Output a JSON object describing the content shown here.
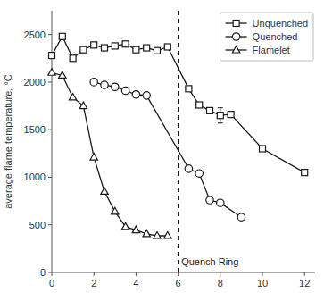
{
  "chart_data": {
    "type": "line",
    "ylabel": "average flame temperature, °C",
    "xlim": [
      0,
      12.5
    ],
    "ylim": [
      0,
      2750
    ],
    "xticks": [
      0,
      2,
      4,
      6,
      8,
      10,
      12
    ],
    "yticks": [
      0,
      500,
      1000,
      1500,
      2000,
      2500
    ],
    "grid": false,
    "legend": "upper right",
    "color": "#1a1a1a",
    "series": [
      {
        "name": "Unquenched",
        "marker": "square",
        "x": [
          0.0,
          0.5,
          1.0,
          1.5,
          2.0,
          2.5,
          3.0,
          3.5,
          4.0,
          4.5,
          5.0,
          5.5,
          6.5,
          7.0,
          7.5,
          8.0,
          8.5,
          10.0,
          12.0
        ],
        "values": [
          2280,
          2480,
          2250,
          2340,
          2390,
          2360,
          2380,
          2400,
          2340,
          2360,
          2330,
          2370,
          1930,
          1760,
          1700,
          1650,
          1660,
          1300,
          1050
        ],
        "error_bars": {
          "x": [
            8.0
          ],
          "values": [
            1650
          ],
          "errors": [
            80
          ]
        }
      },
      {
        "name": "Quenched",
        "marker": "circle",
        "x": [
          2.0,
          2.5,
          3.0,
          3.5,
          4.0,
          4.5,
          6.5,
          7.0,
          7.5,
          8.0,
          9.0
        ],
        "values": [
          2000,
          1970,
          1950,
          1910,
          1870,
          1860,
          1090,
          1040,
          760,
          730,
          580
        ]
      },
      {
        "name": "Flamelet",
        "marker": "triangle",
        "x": [
          0.0,
          0.5,
          1.0,
          1.5,
          2.0,
          2.5,
          3.0,
          3.5,
          4.0,
          4.5,
          5.0,
          5.5
        ],
        "values": [
          2100,
          2070,
          1840,
          1750,
          1210,
          850,
          640,
          480,
          445,
          405,
          385,
          385
        ]
      }
    ],
    "vline": {
      "x": 6.0,
      "line_style": "dashed"
    },
    "annotations": [
      {
        "text": "Quench Ring",
        "x": 6.15,
        "y": 55
      }
    ]
  }
}
